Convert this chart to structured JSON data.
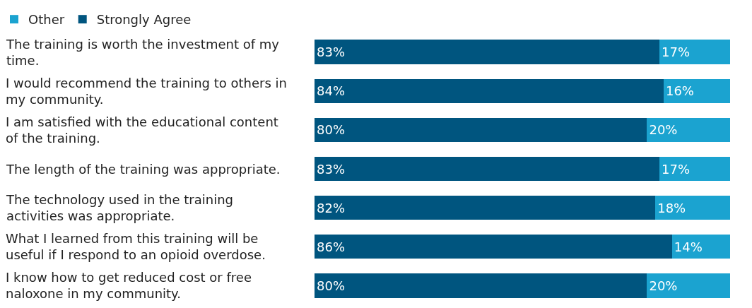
{
  "chart_data": {
    "type": "bar",
    "orientation": "horizontal",
    "stacked": true,
    "legend": "top left",
    "categories": [
      "The training is worth the investment of my time.",
      "I would recommend the training to others in my community.",
      "I am satisfied with the educational content of the training.",
      "The length of the training was appropriate.",
      "The technology used in the training activities was appropriate.",
      "What I learned from this training will be useful if I respond to an opioid overdose.",
      "I know how to get reduced cost or free naloxone in my community."
    ],
    "series": [
      {
        "name": "Strongly Agree",
        "color": "#00557f",
        "values": [
          83,
          84,
          80,
          83,
          82,
          86,
          80
        ],
        "value_labels": [
          "83%",
          "84%",
          "80%",
          "83%",
          "82%",
          "86%",
          "80%"
        ]
      },
      {
        "name": "Other",
        "color": "#1ba3d0",
        "values": [
          17,
          16,
          20,
          17,
          18,
          14,
          20
        ],
        "value_labels": [
          "17%",
          "16%",
          "20%",
          "17%",
          "18%",
          "14%",
          "20%"
        ]
      }
    ]
  }
}
